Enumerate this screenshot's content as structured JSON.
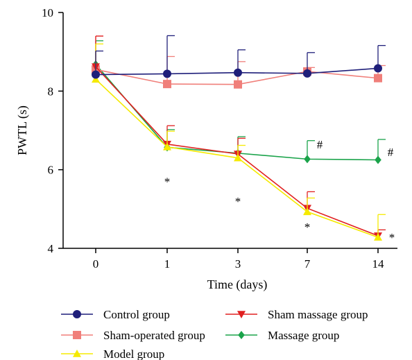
{
  "chart_data": {
    "type": "line",
    "title": "",
    "xlabel": "Time (days)",
    "ylabel": "PWTL (s)",
    "x_categories": [
      "0",
      "1",
      "3",
      "7",
      "14"
    ],
    "ylim": [
      4,
      10
    ],
    "yticks": [
      "4",
      "6",
      "8",
      "10"
    ],
    "grid": false,
    "legend_position": "bottom",
    "series": [
      {
        "name": "Control group",
        "color": "#1f1f7a",
        "marker": "circle",
        "values": [
          8.42,
          8.44,
          8.47,
          8.45,
          8.58
        ],
        "errors": [
          0.6,
          0.97,
          0.58,
          0.53,
          0.58
        ]
      },
      {
        "name": "Sham-operated group",
        "color": "#f07f7a",
        "marker": "square",
        "values": [
          8.55,
          8.18,
          8.17,
          8.5,
          8.33
        ],
        "errors": [
          0.85,
          0.7,
          0.58,
          0.1,
          0.32
        ]
      },
      {
        "name": "Model group",
        "color": "#f5ea00",
        "marker": "triangle-up",
        "values": [
          8.3,
          6.58,
          6.3,
          4.93,
          4.28
        ],
        "errors": [
          0.9,
          0.4,
          0.32,
          0.35,
          0.58
        ]
      },
      {
        "name": "Sham massage group",
        "color": "#e02020",
        "marker": "triangle-down",
        "values": [
          8.62,
          6.65,
          6.4,
          5.02,
          4.32
        ],
        "errors": [
          0.78,
          0.47,
          0.4,
          0.42,
          0.15
        ]
      },
      {
        "name": "Massage group",
        "color": "#1aa34a",
        "marker": "diamond",
        "values": [
          8.68,
          6.57,
          6.42,
          6.27,
          6.25
        ],
        "errors": [
          0.6,
          0.45,
          0.42,
          0.47,
          0.52
        ]
      }
    ],
    "annotations": [
      {
        "text": "*",
        "x": "1",
        "y": 5.7
      },
      {
        "text": "*",
        "x": "3",
        "y": 5.2
      },
      {
        "text": "*",
        "x": "7",
        "y": 4.55
      },
      {
        "text": "*",
        "x": "14",
        "y": 4.28
      },
      {
        "text": "#",
        "x": "7",
        "y": 6.65
      },
      {
        "text": "#",
        "x": "14",
        "y": 6.45
      }
    ]
  }
}
